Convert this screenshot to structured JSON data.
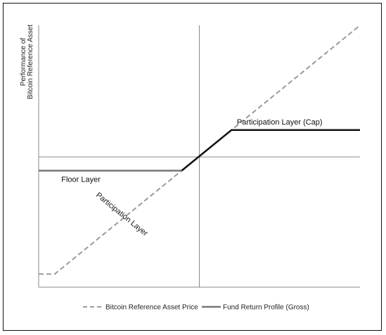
{
  "chart_data": {
    "type": "line",
    "title": "",
    "xlabel": "",
    "ylabel": "Performance of Bitcoin Reference Asset",
    "ylabel_lines": [
      "Performance of",
      "Bitcoin Reference Asset"
    ],
    "xlim": [
      -1,
      1
    ],
    "ylim": [
      -1,
      1
    ],
    "grid": false,
    "legend_position": "bottom",
    "series": [
      {
        "name": "Bitcoin Reference Asset Price",
        "style": "dashed",
        "color": "#9a9a9a",
        "x": [
          -1.0,
          -0.9,
          1.0
        ],
        "y": [
          -0.9,
          -0.9,
          1.0
        ]
      },
      {
        "name": "Fund Return Profile (Gross)",
        "style": "solid",
        "color": "#111111",
        "x": [
          -1.0,
          -0.11,
          0.2,
          1.0
        ],
        "y": [
          -0.11,
          -0.11,
          0.2,
          0.2
        ]
      }
    ],
    "annotations": [
      {
        "text": "Participation Layer (Cap)",
        "x": 0.5,
        "y": 0.2
      },
      {
        "text": "Floor Layer",
        "x": -0.85,
        "y": -0.11
      },
      {
        "text": "Participation Layer",
        "x": -0.5,
        "y": -0.5
      }
    ]
  },
  "colors": {
    "dashed_series": "#9a9a9a",
    "solid_series": "#111111",
    "floor_segment": "#777777",
    "axis": "#888888"
  }
}
